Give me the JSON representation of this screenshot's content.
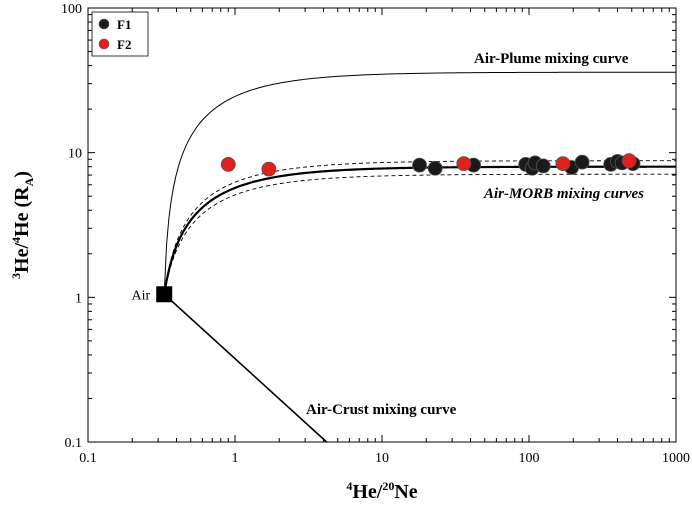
{
  "chart_data": {
    "type": "scatter",
    "x_scale": "log",
    "y_scale": "log",
    "xlim": [
      0.1,
      1000
    ],
    "ylim": [
      0.1,
      100
    ],
    "x_ticks": [
      {
        "value": 0.1,
        "label": "0.1"
      },
      {
        "value": 1,
        "label": "1"
      },
      {
        "value": 10,
        "label": "10"
      },
      {
        "value": 100,
        "label": "100"
      },
      {
        "value": 1000,
        "label": "1000"
      }
    ],
    "y_ticks": [
      {
        "value": 0.1,
        "label": "0.1"
      },
      {
        "value": 1,
        "label": "1"
      },
      {
        "value": 10,
        "label": "10"
      },
      {
        "value": 100,
        "label": "100"
      }
    ],
    "xlabel": {
      "sup1": "4",
      "text1": "He/",
      "sup2": "20",
      "text2": "Ne"
    },
    "ylabel": {
      "sup1": "3",
      "text1": "He/",
      "sup2": "4",
      "text2": "He (R",
      "sub": "A",
      "text3": ")"
    },
    "legend": {
      "position": "top-left",
      "entries": [
        {
          "name": "F1",
          "color": "#1a1a1a"
        },
        {
          "name": "F2",
          "color": "#e0201c"
        }
      ]
    },
    "series": [
      {
        "name": "F1",
        "color": "#1a1a1a",
        "points": [
          {
            "x": 18,
            "y": 8.2
          },
          {
            "x": 23,
            "y": 7.8
          },
          {
            "x": 42,
            "y": 8.2
          },
          {
            "x": 95,
            "y": 8.3
          },
          {
            "x": 105,
            "y": 7.8
          },
          {
            "x": 110,
            "y": 8.5
          },
          {
            "x": 125,
            "y": 8.1
          },
          {
            "x": 195,
            "y": 7.9
          },
          {
            "x": 230,
            "y": 8.6
          },
          {
            "x": 360,
            "y": 8.3
          },
          {
            "x": 400,
            "y": 8.7
          },
          {
            "x": 430,
            "y": 8.5
          },
          {
            "x": 510,
            "y": 8.4
          }
        ]
      },
      {
        "name": "F2",
        "color": "#e0201c",
        "points": [
          {
            "x": 0.9,
            "y": 8.3
          },
          {
            "x": 1.7,
            "y": 7.7
          },
          {
            "x": 36,
            "y": 8.4
          },
          {
            "x": 170,
            "y": 8.4
          },
          {
            "x": 480,
            "y": 8.8
          }
        ]
      }
    ],
    "curves": {
      "air": {
        "x": 0.33,
        "y": 1.05,
        "label": "Air"
      },
      "plume": {
        "end_y": 36,
        "label": "Air-Plume mixing curve"
      },
      "morb": {
        "end_y": 8.0,
        "upper_y": 8.8,
        "lower_y": 7.1,
        "label": "Air-MORB mixing curves"
      },
      "crust": {
        "end_x": 4.2,
        "end_y": 0.1,
        "label": "Air-Crust mixing curve"
      }
    }
  }
}
